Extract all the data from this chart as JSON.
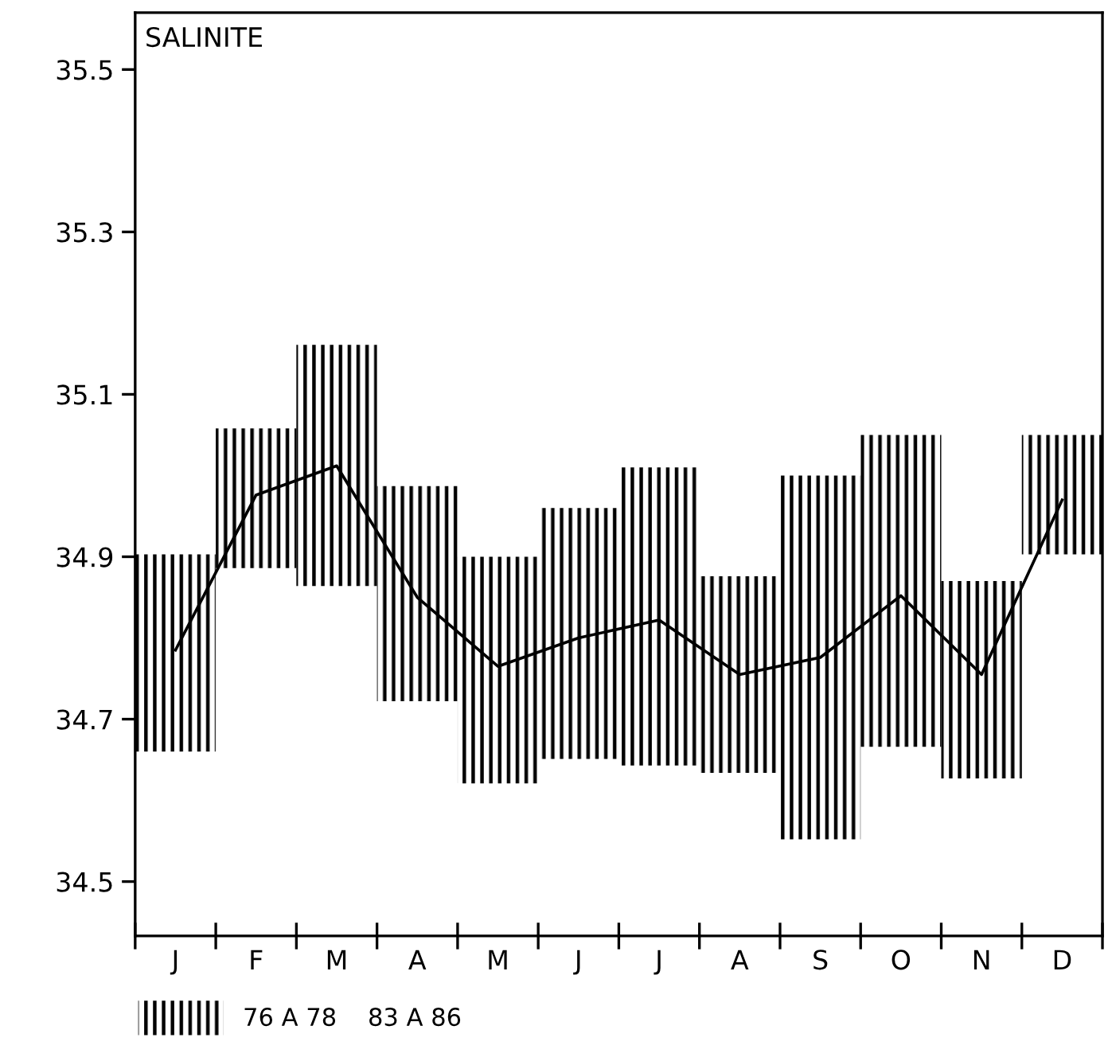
{
  "chart_data": {
    "type": "bar",
    "title": "SALINITE",
    "categories": [
      "J",
      "F",
      "M",
      "A",
      "M",
      "J",
      "J",
      "A",
      "S",
      "O",
      "N",
      "D"
    ],
    "series": [
      {
        "name": "76 A 78    83 A 86",
        "color": "#000000",
        "base": [
          34.66,
          34.886,
          34.864,
          34.722,
          34.621,
          34.651,
          34.643,
          34.634,
          34.552,
          34.666,
          34.627,
          34.903
        ],
        "values": [
          0.243,
          0.172,
          0.297,
          0.265,
          0.279,
          0.309,
          0.367,
          0.242,
          0.448,
          0.384,
          0.243,
          0.147
        ]
      },
      {
        "type": "line",
        "color": "#000000",
        "values": [
          34.785,
          34.976,
          35.012,
          34.85,
          34.765,
          34.8,
          34.822,
          34.755,
          34.776,
          34.852,
          34.755,
          34.97
        ]
      }
    ],
    "ylim": [
      34.433,
      35.57
    ],
    "yticks": [
      34.5,
      34.7,
      34.9,
      35.1,
      35.3,
      35.5
    ],
    "grid": false,
    "legend": "bottom",
    "marker": "none",
    "line_style": "solid"
  }
}
